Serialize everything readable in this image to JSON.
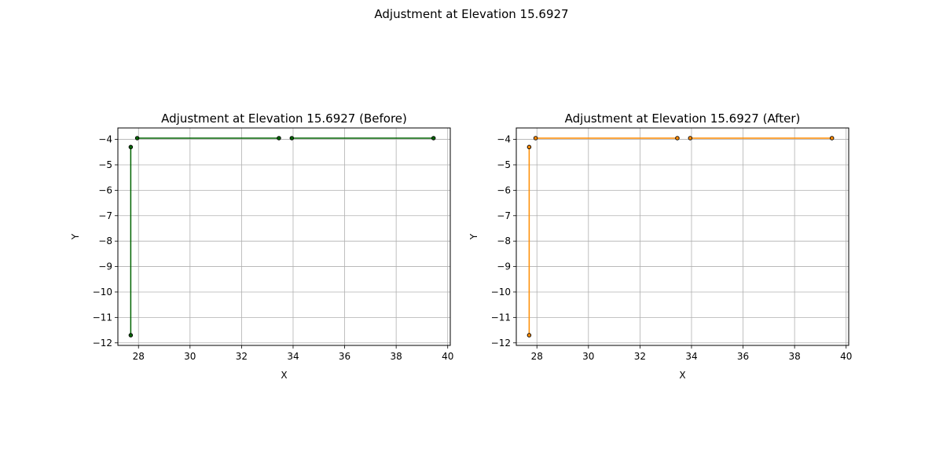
{
  "figure": {
    "suptitle": "Adjustment at Elevation 15.6927"
  },
  "chart_data": [
    {
      "type": "line",
      "title": "Adjustment at Elevation 15.6927 (Before)",
      "xlabel": "X",
      "ylabel": "Y",
      "xlim": [
        27.2,
        40.1
      ],
      "ylim": [
        -12.1,
        -3.55
      ],
      "xticks": [
        28,
        30,
        32,
        34,
        36,
        38,
        40
      ],
      "yticks": [
        -4,
        -5,
        -6,
        -7,
        -8,
        -9,
        -10,
        -11,
        -12
      ],
      "grid": true,
      "line_color": "#006400",
      "marker_color": "#006400",
      "marker_edge": "#000000",
      "segments": [
        {
          "x": [
            27.7,
            27.7
          ],
          "y": [
            -4.3,
            -11.7
          ]
        },
        {
          "x": [
            27.95,
            33.45
          ],
          "y": [
            -3.95,
            -3.95
          ]
        },
        {
          "x": [
            33.95,
            39.45
          ],
          "y": [
            -3.95,
            -3.95
          ]
        }
      ]
    },
    {
      "type": "line",
      "title": "Adjustment at Elevation 15.6927 (After)",
      "xlabel": "X",
      "ylabel": "Y",
      "xlim": [
        27.2,
        40.1
      ],
      "ylim": [
        -12.1,
        -3.55
      ],
      "xticks": [
        28,
        30,
        32,
        34,
        36,
        38,
        40
      ],
      "yticks": [
        -4,
        -5,
        -6,
        -7,
        -8,
        -9,
        -10,
        -11,
        -12
      ],
      "grid": true,
      "line_color": "#ff8c00",
      "marker_color": "#ff8c00",
      "marker_edge": "#000000",
      "segments": [
        {
          "x": [
            27.7,
            27.7
          ],
          "y": [
            -4.3,
            -11.7
          ]
        },
        {
          "x": [
            27.95,
            33.45
          ],
          "y": [
            -3.95,
            -3.95
          ]
        },
        {
          "x": [
            33.95,
            39.45
          ],
          "y": [
            -3.95,
            -3.95
          ]
        }
      ]
    }
  ]
}
